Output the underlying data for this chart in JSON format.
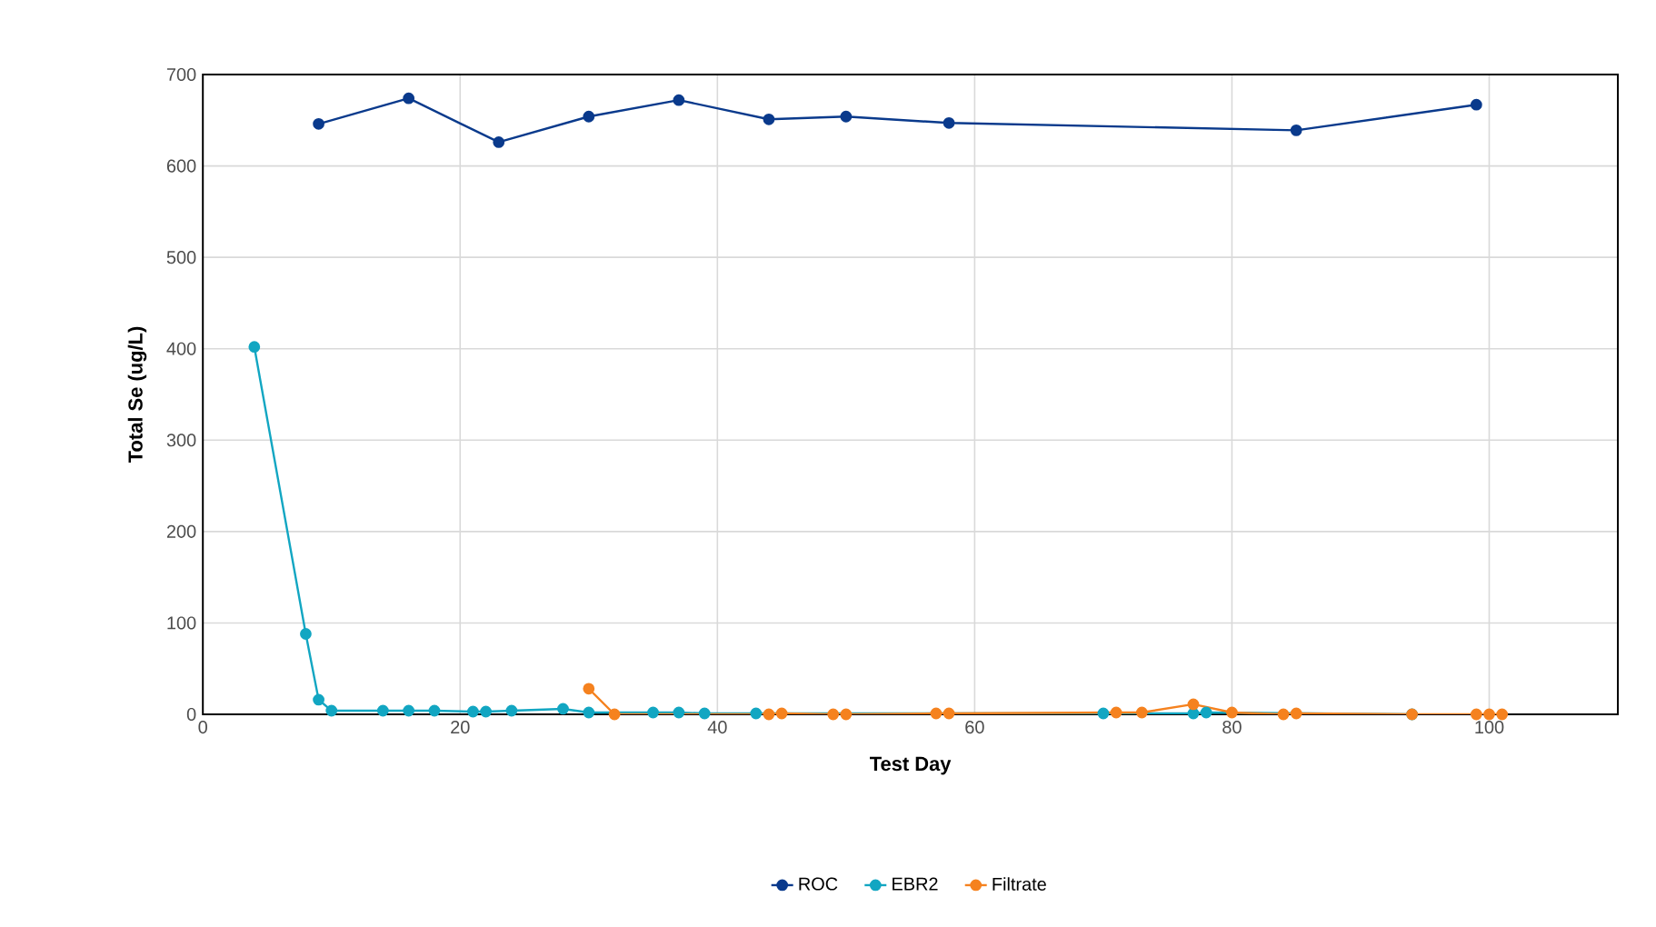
{
  "chart_data": {
    "type": "line",
    "xlabel": "Test Day",
    "ylabel": "Total Se (ug/L)",
    "xlim": [
      0,
      110
    ],
    "xticks": [
      0,
      20,
      40,
      60,
      80,
      100
    ],
    "ylim": [
      0,
      700
    ],
    "yticks": [
      0,
      100,
      200,
      300,
      400,
      500,
      600,
      700
    ],
    "grid": true,
    "legend": "bottom",
    "marker": "circle",
    "line_style": "solid",
    "series": [
      {
        "name": "ROC",
        "color": "#0a3a8c",
        "x": [
          9,
          16,
          23,
          30,
          37,
          44,
          50,
          58,
          85,
          99
        ],
        "values": [
          646,
          674,
          626,
          654,
          672,
          651,
          654,
          647,
          639,
          667
        ]
      },
      {
        "name": "EBR2",
        "color": "#12a6c2",
        "x": [
          4,
          8,
          9,
          10,
          14,
          16,
          18,
          21,
          22,
          24,
          28,
          30,
          35,
          37,
          39,
          43,
          70,
          77,
          78,
          80,
          94
        ],
        "values": [
          402,
          88,
          16,
          4,
          4,
          4,
          4,
          3,
          3,
          4,
          6,
          2,
          2,
          2,
          1,
          1,
          1,
          1,
          2,
          null,
          0
        ]
      },
      {
        "name": "Filtrate",
        "color": "#f5821f",
        "x": [
          30,
          32,
          44,
          45,
          49,
          50,
          57,
          58,
          71,
          73,
          77,
          80,
          84,
          85,
          94,
          99,
          100,
          101
        ],
        "values": [
          28,
          0,
          0,
          1,
          0,
          0,
          1,
          1,
          2,
          2,
          11,
          2,
          0,
          1,
          0,
          0,
          0,
          0
        ]
      }
    ]
  }
}
